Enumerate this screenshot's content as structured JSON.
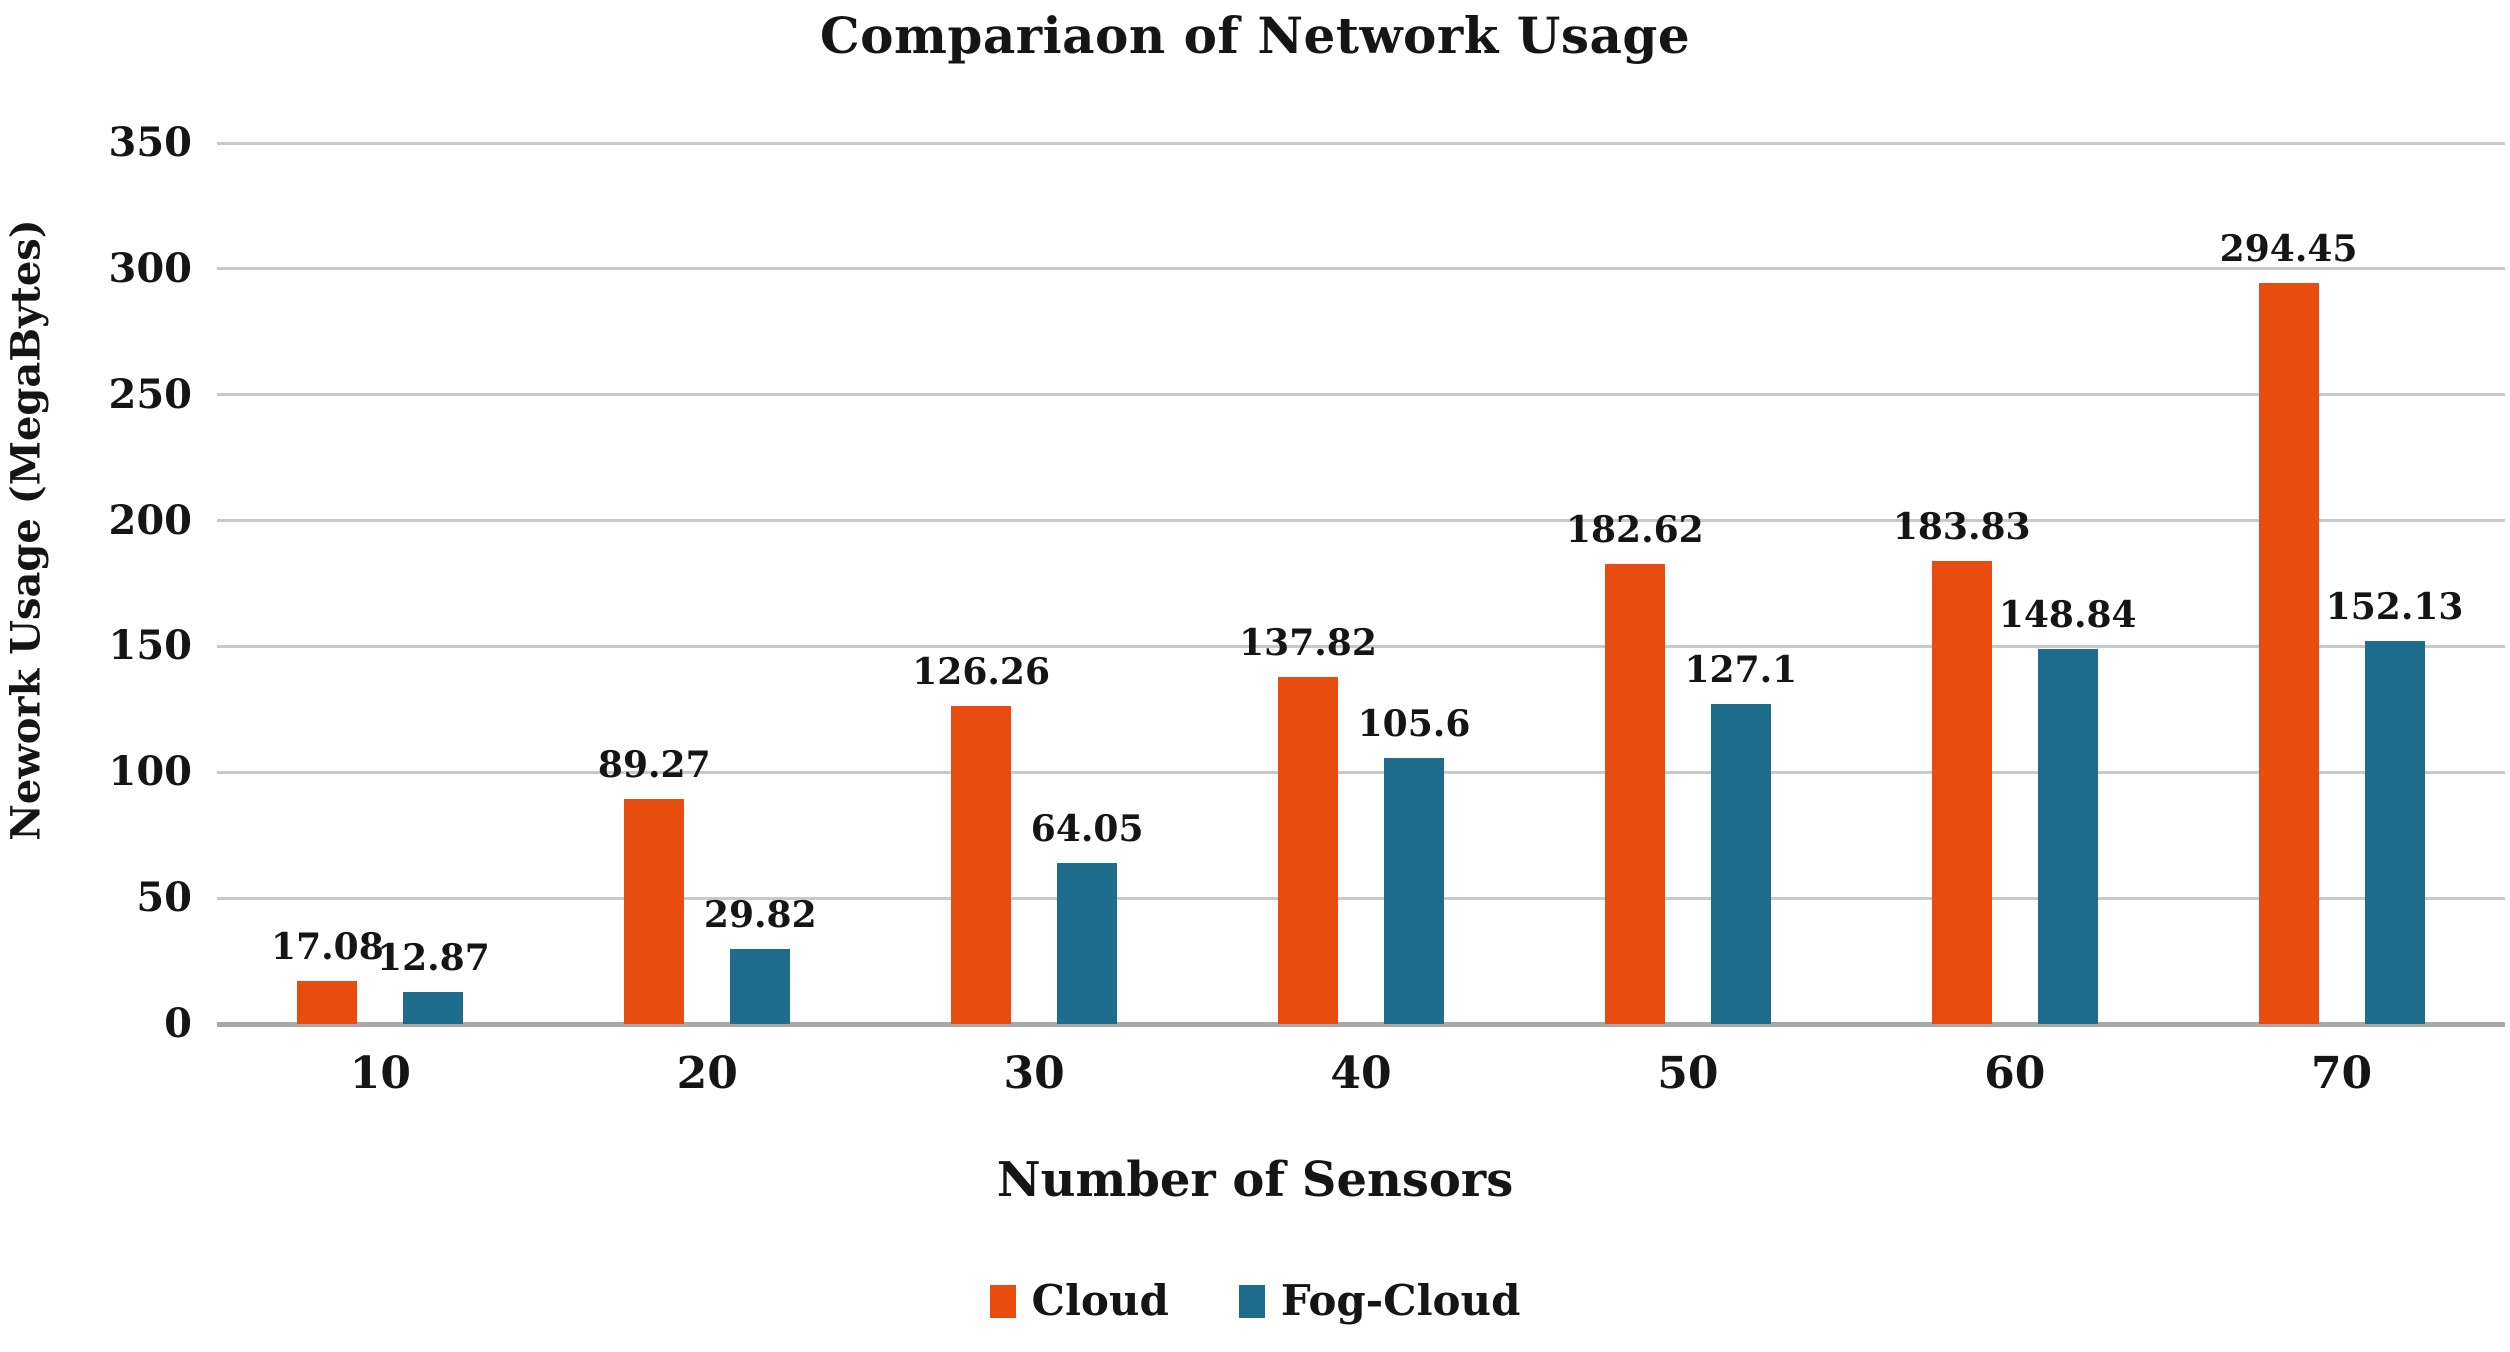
{
  "chart_data": {
    "type": "bar",
    "title": "Compariaon of Network Usage",
    "xlabel": "Number of Sensors",
    "ylabel": "Nework Usage (MegaBytes)",
    "categories": [
      "10",
      "20",
      "30",
      "40",
      "50",
      "60",
      "70"
    ],
    "series": [
      {
        "name": "Cloud",
        "color": "#E84C0F",
        "values": [
          17.08,
          89.27,
          126.26,
          137.82,
          182.62,
          183.83,
          294.45
        ],
        "labels": [
          "17.08",
          "89.27",
          "126.26",
          "137.82",
          "182.62",
          "183.83",
          "294.45"
        ]
      },
      {
        "name": "Fog-Cloud",
        "color": "#1F6D8C",
        "values": [
          12.87,
          29.82,
          64.05,
          105.6,
          127.1,
          148.84,
          152.13
        ],
        "labels": [
          "12.87",
          "29.82",
          "64.05",
          "105.6",
          "127.1",
          "148.84",
          "152.13"
        ]
      }
    ],
    "ylim": [
      0,
      350
    ],
    "yticks": [
      0,
      50,
      100,
      150,
      200,
      250,
      300,
      350
    ],
    "grid": true,
    "legend_position": "bottom",
    "colors": {
      "gridline": "#c9c9c9",
      "baseline": "#a8a8a8",
      "text": "#151515"
    }
  }
}
